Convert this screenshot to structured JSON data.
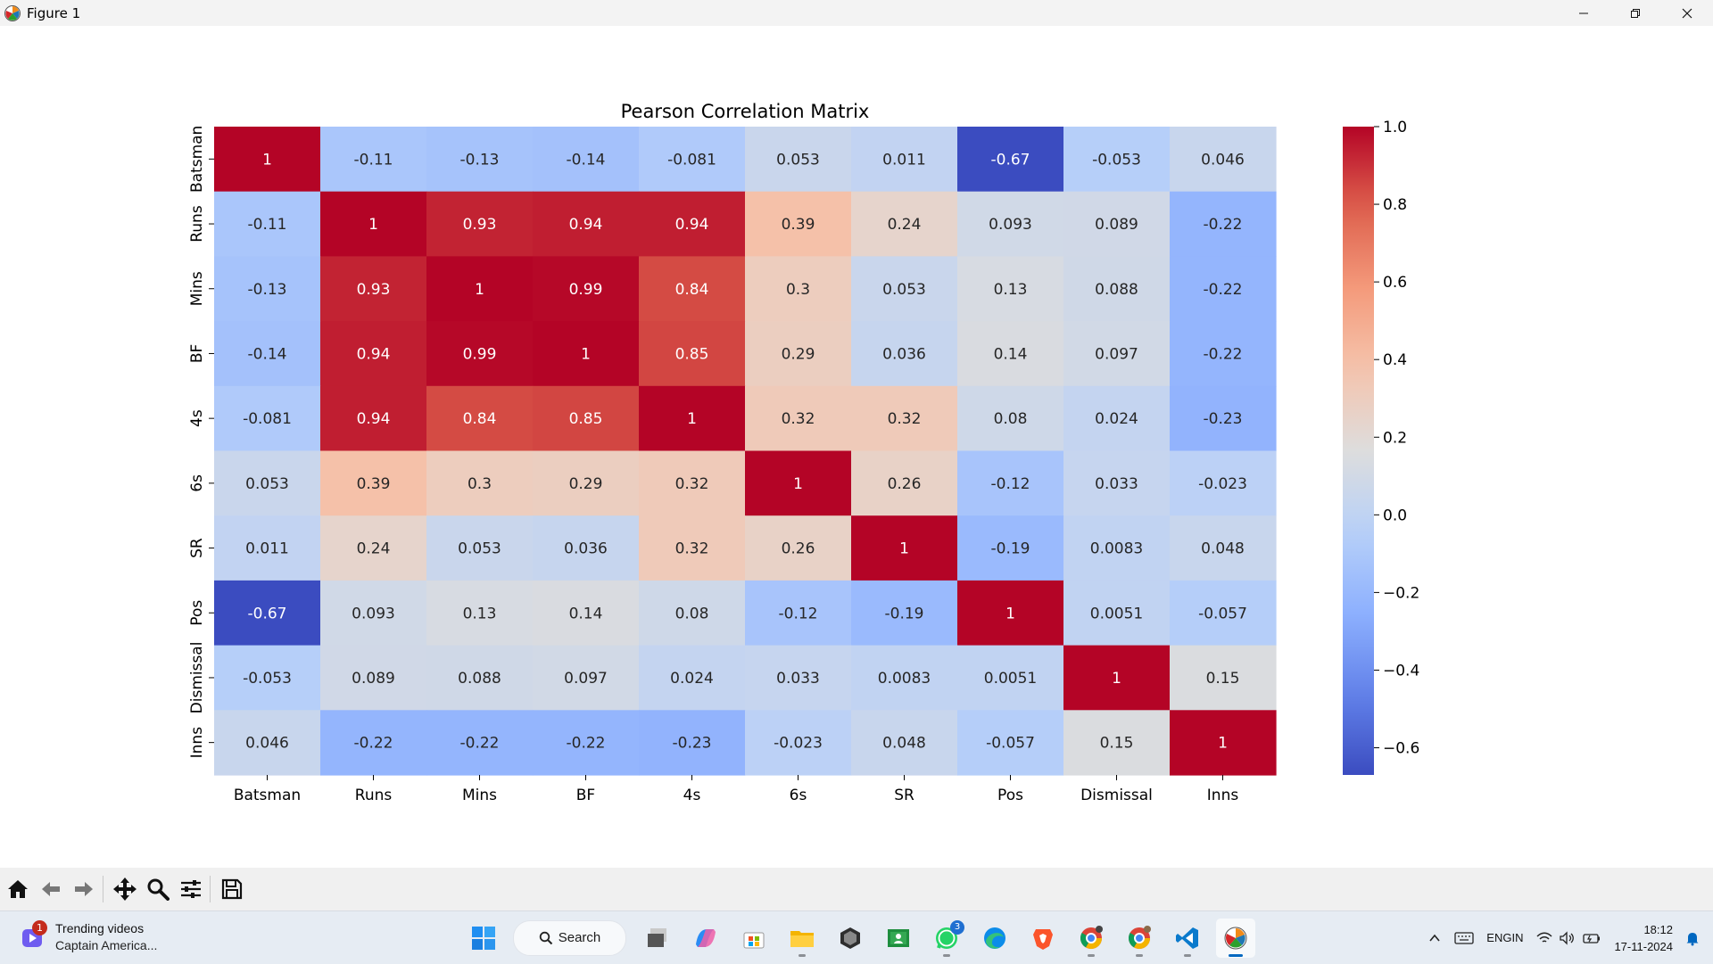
{
  "window": {
    "title": "Figure 1",
    "controls": [
      "minimize-icon",
      "restore-icon",
      "close-icon"
    ]
  },
  "chart_data": {
    "type": "heatmap",
    "title": "Pearson Correlation Matrix",
    "xlabel": "",
    "ylabel": "",
    "labels": [
      "Batsman",
      "Runs",
      "Mins",
      "BF",
      "4s",
      "6s",
      "SR",
      "Pos",
      "Dismissal",
      "Inns"
    ],
    "matrix": [
      [
        "1",
        "-0.11",
        "-0.13",
        "-0.14",
        "-0.081",
        "0.053",
        "0.011",
        "-0.67",
        "-0.053",
        "0.046"
      ],
      [
        "-0.11",
        "1",
        "0.93",
        "0.94",
        "0.94",
        "0.39",
        "0.24",
        "0.093",
        "0.089",
        "-0.22"
      ],
      [
        "-0.13",
        "0.93",
        "1",
        "0.99",
        "0.84",
        "0.3",
        "0.053",
        "0.13",
        "0.088",
        "-0.22"
      ],
      [
        "-0.14",
        "0.94",
        "0.99",
        "1",
        "0.85",
        "0.29",
        "0.036",
        "0.14",
        "0.097",
        "-0.22"
      ],
      [
        "-0.081",
        "0.94",
        "0.84",
        "0.85",
        "1",
        "0.32",
        "0.32",
        "0.08",
        "0.024",
        "-0.23"
      ],
      [
        "0.053",
        "0.39",
        "0.3",
        "0.29",
        "0.32",
        "1",
        "0.26",
        "-0.12",
        "0.033",
        "-0.023"
      ],
      [
        "0.011",
        "0.24",
        "0.053",
        "0.036",
        "0.32",
        "0.26",
        "1",
        "-0.19",
        "0.0083",
        "0.048"
      ],
      [
        "-0.67",
        "0.093",
        "0.13",
        "0.14",
        "0.08",
        "-0.12",
        "-0.19",
        "1",
        "0.0051",
        "-0.057"
      ],
      [
        "-0.053",
        "0.089",
        "0.088",
        "0.097",
        "0.024",
        "0.033",
        "0.0083",
        "0.0051",
        "1",
        "0.15"
      ],
      [
        "0.046",
        "-0.22",
        "-0.22",
        "-0.22",
        "-0.23",
        "-0.023",
        "0.048",
        "-0.057",
        "0.15",
        "1"
      ]
    ],
    "colormap": "coolwarm",
    "vmin": -0.67,
    "vmax": 1.0,
    "colorbar_ticks": [
      1.0,
      0.8,
      0.6,
      0.4,
      0.2,
      0.0,
      -0.2,
      -0.4,
      -0.6
    ],
    "colorbar_tick_labels": [
      "1.0",
      "0.8",
      "0.6",
      "0.4",
      "0.2",
      "0.0",
      "−0.2",
      "−0.4",
      "−0.6"
    ],
    "grid": false,
    "legend": "colorbar-right"
  },
  "toolbar": {
    "buttons": [
      "home-icon",
      "back-icon",
      "forward-icon",
      "pan-icon",
      "zoom-icon",
      "configure-subplots-icon",
      "save-icon"
    ]
  },
  "taskbar": {
    "widget": {
      "title": "Trending videos",
      "subtitle": "Captain America...",
      "badge": "1"
    },
    "search_label": "Search",
    "apps": [
      {
        "name": "start-icon"
      },
      {
        "name": "task-view-icon"
      },
      {
        "name": "copilot-icon"
      },
      {
        "name": "store-icon"
      },
      {
        "name": "file-explorer-icon"
      },
      {
        "name": "unity-hub-icon"
      },
      {
        "name": "classroom-icon"
      },
      {
        "name": "whatsapp-icon",
        "badge": "3"
      },
      {
        "name": "edge-icon"
      },
      {
        "name": "brave-icon"
      },
      {
        "name": "chrome-profile-1-icon"
      },
      {
        "name": "chrome-profile-2-icon"
      },
      {
        "name": "vscode-icon"
      },
      {
        "name": "matplotlib-figure-icon"
      }
    ],
    "tray": {
      "lang_top": "ENG",
      "lang_bottom": "IN",
      "time": "18:12",
      "date": "17-11-2024"
    }
  },
  "colors": {
    "titlebar": "#f3f3f3",
    "toolbar": "#f0f0f0",
    "taskbar": "#e6ecf3",
    "accent": "#0067c0"
  }
}
